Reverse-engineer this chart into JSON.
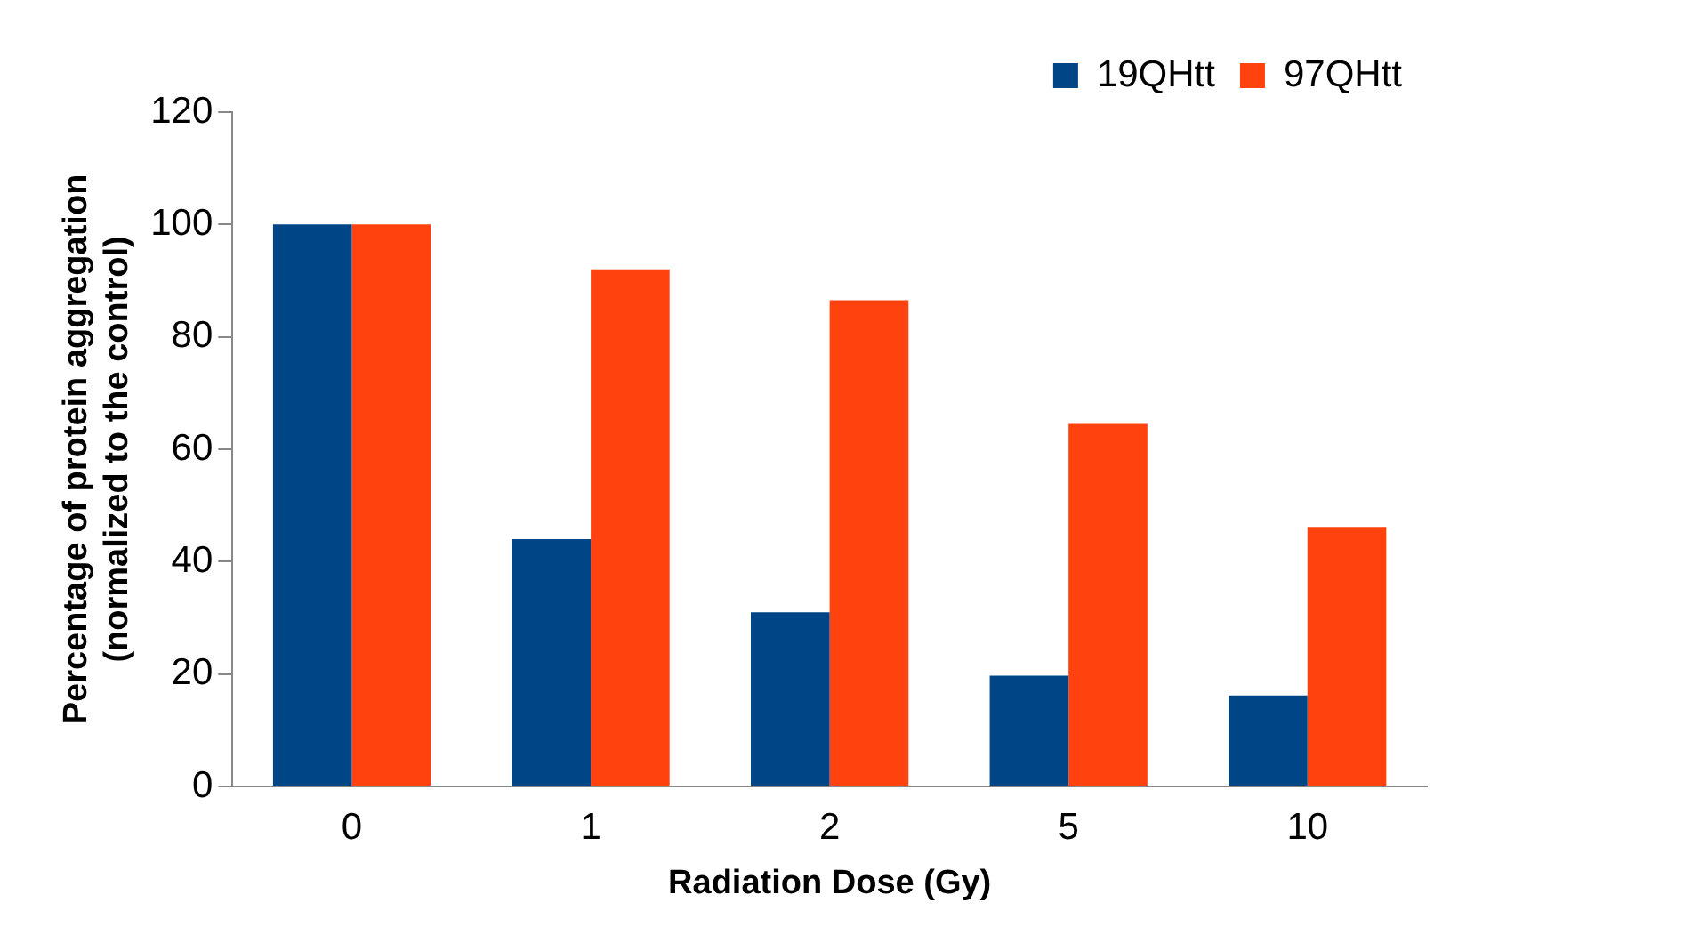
{
  "chart_data": {
    "type": "bar",
    "xlabel": "Radiation Dose (Gy)",
    "ylabel": "Percentage of protein aggregation\n(normalized to the control)",
    "categories": [
      "0",
      "1",
      "2",
      "5",
      "10"
    ],
    "series": [
      {
        "name": "19QHtt",
        "color": "#004586",
        "values": [
          100,
          44,
          31,
          19.7,
          16.2
        ]
      },
      {
        "name": "97QHtt",
        "color": "#ff420e",
        "values": [
          100,
          92,
          86.5,
          64.5,
          46.2
        ]
      }
    ],
    "ylim": [
      0,
      120
    ],
    "yticks": [
      0,
      20,
      40,
      60,
      80,
      100,
      120
    ],
    "grid": false,
    "legend": "top right"
  }
}
